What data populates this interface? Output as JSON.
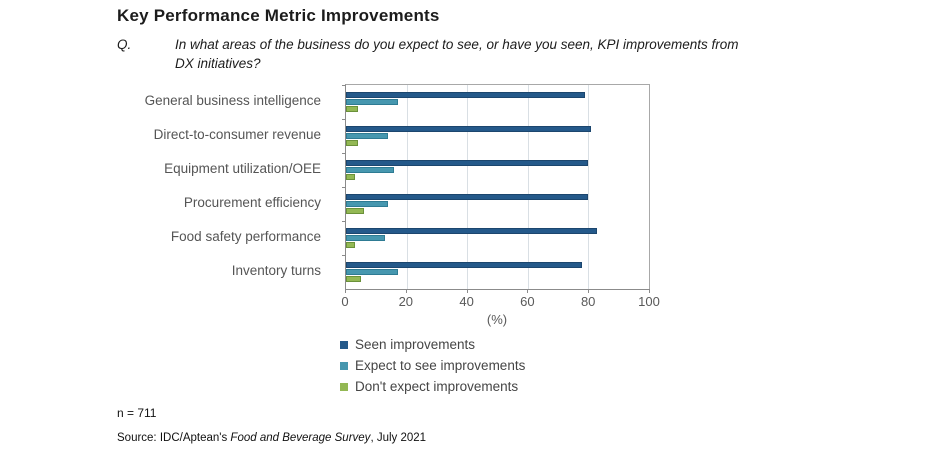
{
  "title": "Key Performance Metric Improvements",
  "question": {
    "label": "Q.",
    "line1": "In what areas of the business do you expect to see, or have you seen, KPI improvements from",
    "line2": "DX initiatives?"
  },
  "chart_data": {
    "type": "bar",
    "orientation": "horizontal",
    "categories": [
      "General business intelligence",
      "Direct-to-consumer revenue",
      "Equipment utilization/OEE",
      "Procurement efficiency",
      "Food safety performance",
      "Inventory turns"
    ],
    "series": [
      {
        "name": "Seen improvements",
        "color": "#24598A",
        "border": "#1c466e",
        "values": [
          79,
          81,
          80,
          80,
          83,
          78
        ]
      },
      {
        "name": "Expect to see improvements",
        "color": "#4697AF",
        "border": "#2e7b93",
        "values": [
          17,
          14,
          16,
          14,
          13,
          17
        ]
      },
      {
        "name": "Don't expect improvements",
        "color": "#93B854",
        "border": "#6b913a",
        "values": [
          4,
          4,
          3,
          6,
          3,
          5
        ]
      }
    ],
    "xlabel": "(%)",
    "xlim": [
      0,
      100
    ],
    "xticks": [
      0,
      20,
      40,
      60,
      80,
      100
    ],
    "grid": true,
    "legend_position": "bottom-left"
  },
  "note": "n = 711",
  "source": {
    "prefix": "Source: IDC/Aptean's ",
    "italic": "Food and Beverage Survey",
    "suffix": ", July 2021"
  }
}
